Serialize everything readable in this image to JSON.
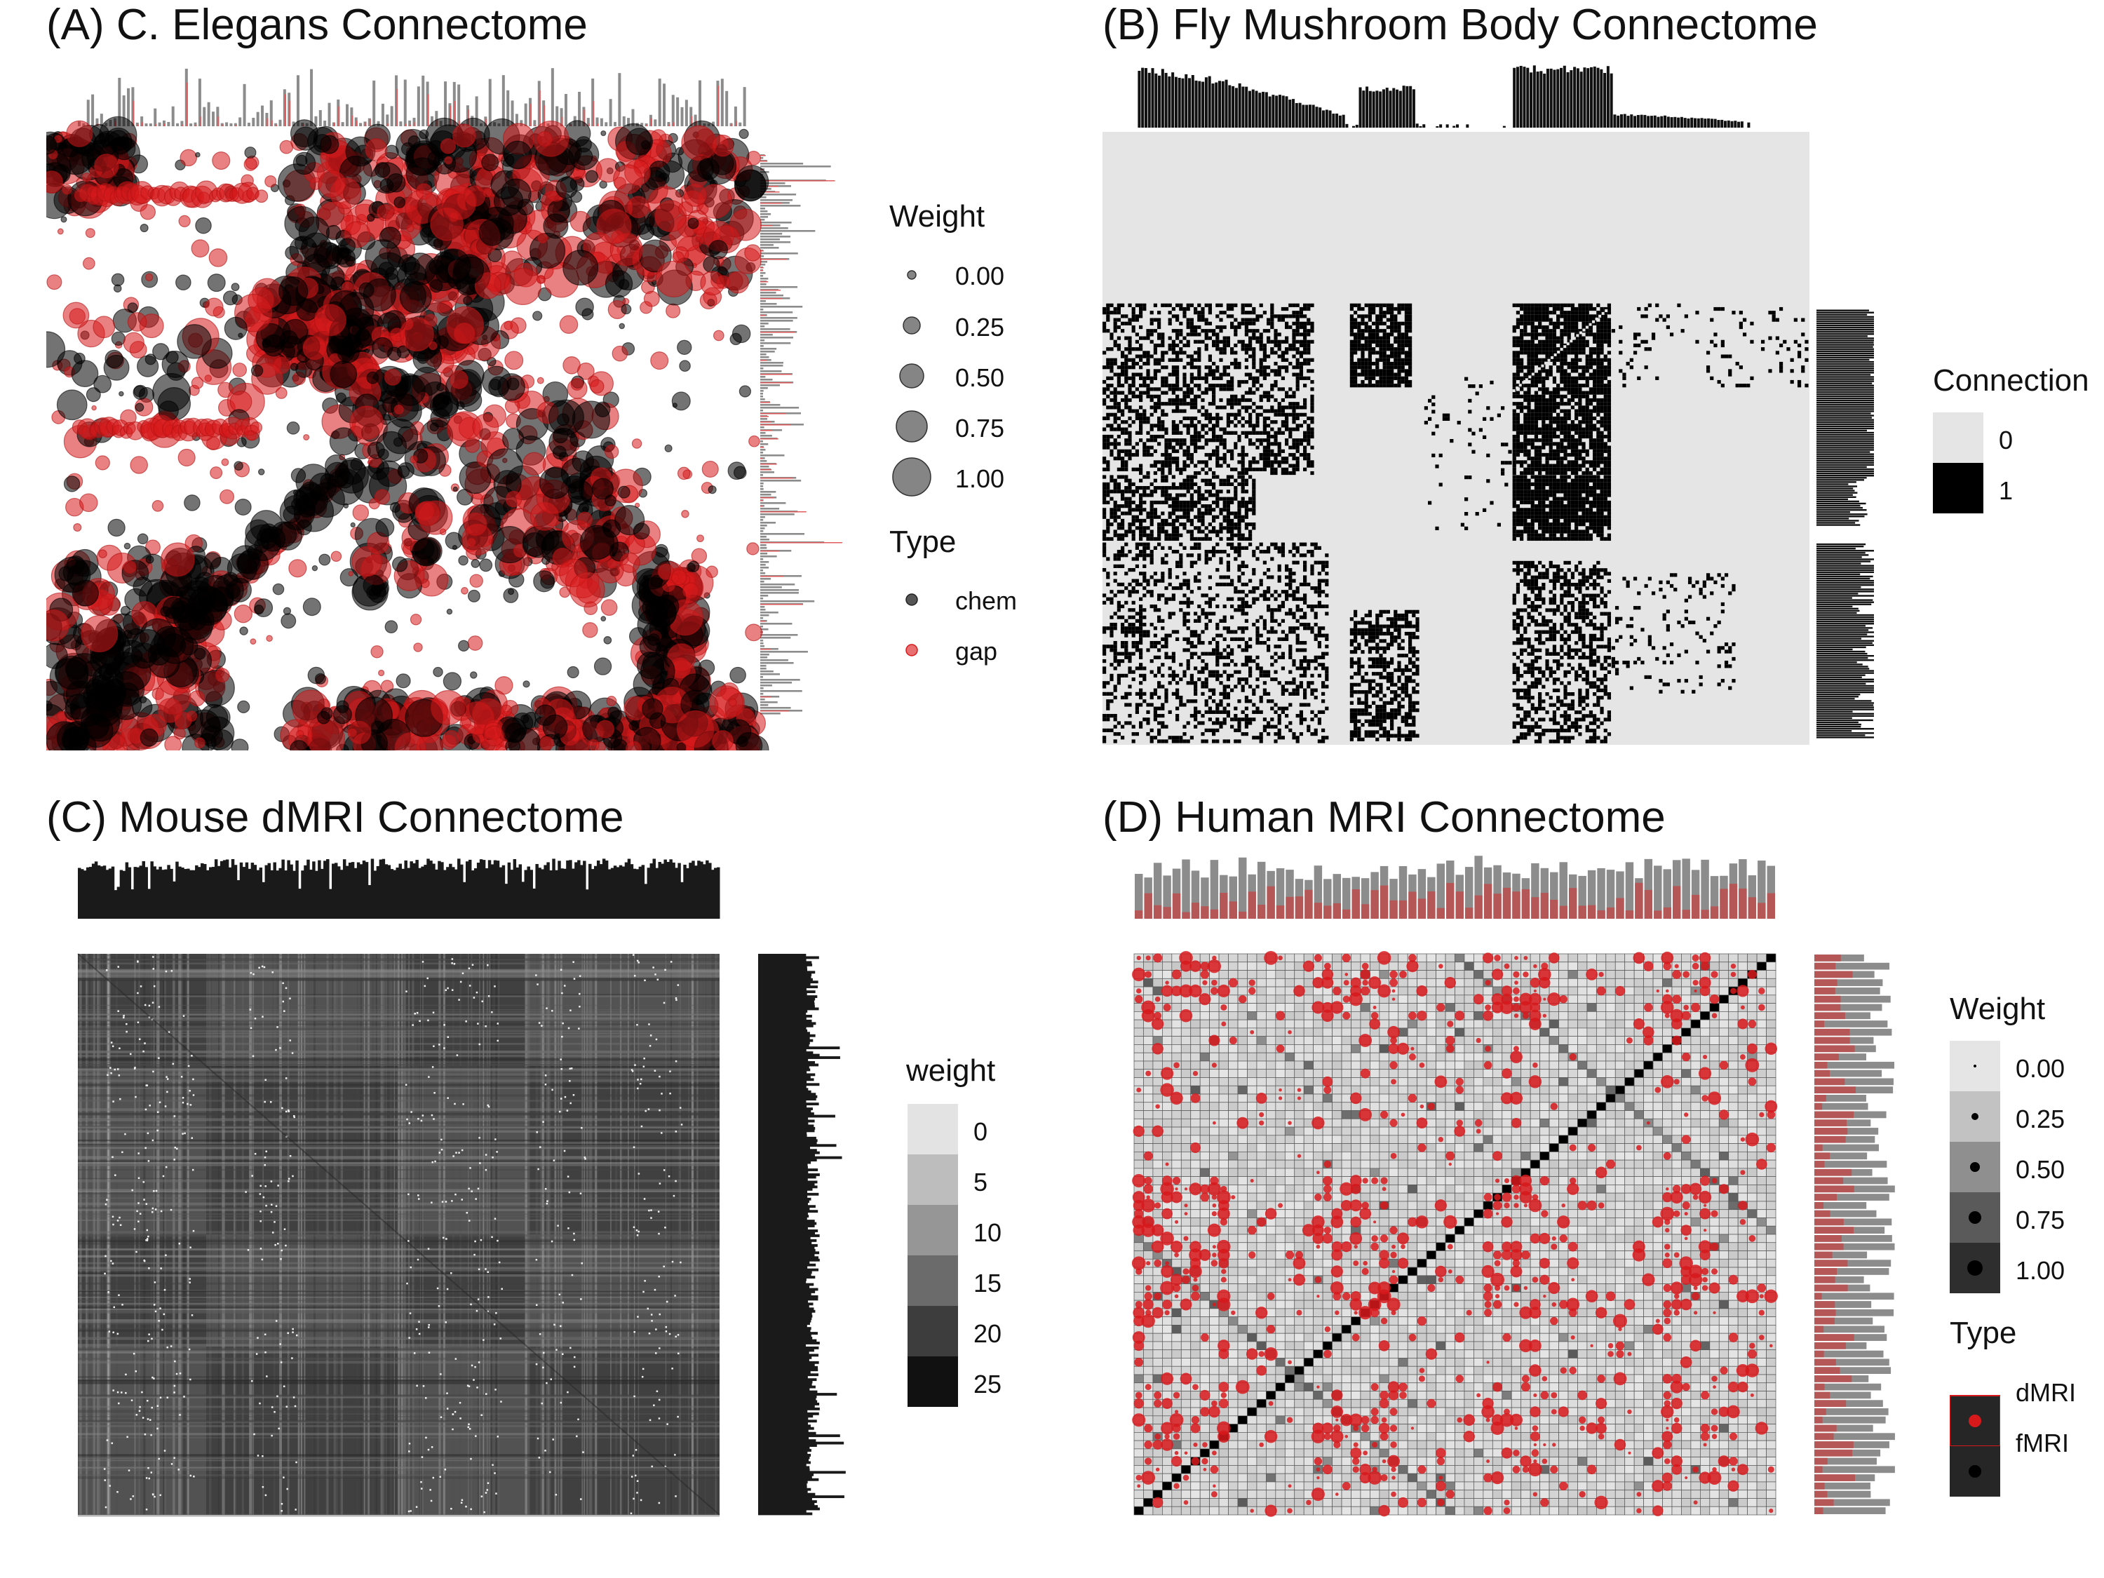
{
  "chart_data": [
    {
      "type": "heatmap",
      "title": "(A) C. Elegans Connectome",
      "encoding": "bubble",
      "legend": {
        "size_title": "Weight",
        "size_values": [
          "0.00",
          "0.25",
          "0.50",
          "0.75",
          "1.00"
        ],
        "type_title": "Type",
        "types": [
          {
            "label": "chem",
            "color": "#000000"
          },
          {
            "label": "gap",
            "color": "#d7191c"
          }
        ]
      },
      "marginal_histograms": "top and right",
      "blocks": [
        {
          "x0": 0.35,
          "x1": 0.62,
          "y0": 0.0,
          "y1": 0.35,
          "density": 0.75
        },
        {
          "x0": 0.55,
          "x1": 1.0,
          "y0": 0.0,
          "y1": 0.25,
          "density": 0.7
        },
        {
          "x0": 0.0,
          "x1": 0.12,
          "y0": 0.0,
          "y1": 0.12,
          "density": 0.5
        },
        {
          "x0": 0.3,
          "x1": 0.45,
          "y0": 0.25,
          "y1": 0.4,
          "density": 0.65
        },
        {
          "x0": 0.4,
          "x1": 0.6,
          "y0": 0.3,
          "y1": 0.5,
          "density": 0.5
        },
        {
          "x0": 0.6,
          "x1": 0.8,
          "y0": 0.4,
          "y1": 0.7,
          "density": 0.45
        },
        {
          "x0": 0.0,
          "x1": 0.25,
          "y0": 0.68,
          "y1": 1.0,
          "density": 0.7
        },
        {
          "x0": 0.85,
          "x1": 0.92,
          "y0": 0.7,
          "y1": 1.0,
          "density": 0.7
        },
        {
          "x0": 0.35,
          "x1": 1.0,
          "y0": 0.92,
          "y1": 1.0,
          "density": 0.6
        },
        {
          "x0": 0.45,
          "x1": 0.55,
          "y0": 0.5,
          "y1": 0.75,
          "density": 0.3
        },
        {
          "x0": 0.0,
          "x1": 0.3,
          "y0": 0.28,
          "y1": 0.5,
          "density": 0.15
        },
        {
          "x0": 0.7,
          "x1": 0.85,
          "y0": 0.55,
          "y1": 0.75,
          "density": 0.3
        }
      ],
      "lines": [
        {
          "from": [
            0.05,
            0.1
          ],
          "to": [
            0.3,
            0.1
          ],
          "color": "#d7191c"
        },
        {
          "from": [
            0.05,
            0.48
          ],
          "to": [
            0.3,
            0.48
          ],
          "color": "#d7191c"
        },
        {
          "from": [
            0.18,
            0.85
          ],
          "to": [
            0.42,
            0.55
          ],
          "color": "#d7191c"
        }
      ]
    },
    {
      "type": "heatmap",
      "title": "(B) Fly Mushroom Body Connectome",
      "encoding": "binary",
      "legend": {
        "title": "Connection",
        "levels": [
          {
            "label": "0",
            "color": "#e5e5e5"
          },
          {
            "label": "1",
            "color": "#000000"
          }
        ]
      },
      "marginal_histograms": "top and right",
      "blocks": [
        {
          "x0": 0.0,
          "x1": 0.3,
          "y0": 0.28,
          "y1": 0.56,
          "density": 0.5
        },
        {
          "x0": 0.35,
          "x1": 0.44,
          "y0": 0.28,
          "y1": 0.42,
          "density": 0.8
        },
        {
          "x0": 0.58,
          "x1": 0.72,
          "y0": 0.28,
          "y1": 0.56,
          "density": 0.8
        },
        {
          "x0": 0.72,
          "x1": 1.0,
          "y0": 0.28,
          "y1": 0.42,
          "density": 0.08
        },
        {
          "x0": 0.0,
          "x1": 0.22,
          "y0": 0.56,
          "y1": 0.67,
          "density": 0.6
        },
        {
          "x0": 0.58,
          "x1": 0.72,
          "y0": 0.56,
          "y1": 0.67,
          "density": 0.85
        },
        {
          "x0": 0.0,
          "x1": 0.32,
          "y0": 0.67,
          "y1": 1.0,
          "density": 0.35
        },
        {
          "x0": 0.35,
          "x1": 0.45,
          "y0": 0.78,
          "y1": 1.0,
          "density": 0.6
        },
        {
          "x0": 0.58,
          "x1": 0.72,
          "y0": 0.7,
          "y1": 1.0,
          "density": 0.5
        },
        {
          "x0": 0.72,
          "x1": 0.9,
          "y0": 0.72,
          "y1": 0.92,
          "density": 0.12
        },
        {
          "x0": 0.45,
          "x1": 0.58,
          "y0": 0.4,
          "y1": 0.65,
          "density": 0.05
        }
      ]
    },
    {
      "type": "heatmap",
      "title": "(C) Mouse dMRI Connectome",
      "encoding": "grayscale",
      "legend": {
        "title": "weight",
        "levels": [
          {
            "label": "0",
            "color": "#e3e3e3"
          },
          {
            "label": "5",
            "color": "#bdbdbd"
          },
          {
            "label": "10",
            "color": "#969696"
          },
          {
            "label": "15",
            "color": "#6b6b6b"
          },
          {
            "label": "20",
            "color": "#3d3d3d"
          },
          {
            "label": "25",
            "color": "#111111"
          }
        ]
      },
      "marginal_histograms": "top and right",
      "block_bounds": [
        0.0,
        0.2,
        0.5,
        0.7,
        1.0
      ]
    },
    {
      "type": "heatmap",
      "title": "(D) Human MRI Connectome",
      "encoding": "grid-bubble",
      "legend": {
        "size_title": "Weight",
        "size_values": [
          "0.00",
          "0.25",
          "0.50",
          "0.75",
          "1.00"
        ],
        "type_title": "Type",
        "types": [
          {
            "label": "dMRI",
            "color": "#d7191c"
          },
          {
            "label": "fMRI",
            "color": "#000000"
          }
        ]
      },
      "marginal_histograms": "top and right",
      "n": 68
    }
  ]
}
